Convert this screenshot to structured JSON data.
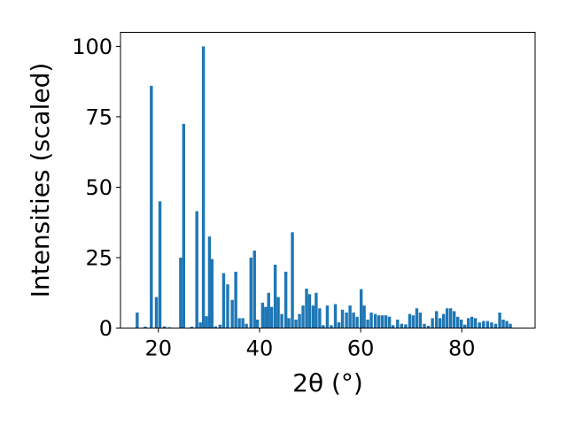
{
  "chart_data": {
    "type": "bar",
    "title": "",
    "xlabel": "2θ (°)",
    "ylabel": "Intensities (scaled)",
    "xlim": [
      12.5,
      94.5
    ],
    "ylim": [
      0,
      105
    ],
    "x_ticks": [
      20,
      40,
      60,
      80
    ],
    "y_ticks": [
      0,
      25,
      50,
      75,
      100
    ],
    "bar_width": 0.6,
    "grid": false,
    "color": "#1f77b4",
    "x": [
      15.8,
      17.4,
      18.6,
      19.6,
      20.3,
      21.2,
      22.2,
      24.4,
      25.0,
      26.6,
      27.6,
      28.3,
      28.9,
      29.5,
      30.1,
      30.6,
      31.3,
      32.2,
      32.9,
      33.7,
      34.6,
      35.3,
      36.0,
      36.7,
      37.4,
      38.3,
      39.0,
      39.6,
      40.6,
      41.2,
      41.8,
      42.4,
      43.1,
      43.7,
      44.4,
      45.2,
      45.8,
      46.5,
      47.2,
      47.9,
      48.6,
      49.3,
      49.9,
      50.6,
      51.2,
      51.9,
      52.6,
      53.4,
      54.2,
      55.0,
      55.7,
      56.4,
      57.2,
      57.9,
      58.6,
      59.3,
      60.1,
      60.7,
      61.4,
      62.1,
      62.9,
      63.6,
      64.3,
      65.0,
      65.7,
      66.4,
      67.3,
      68.1,
      68.9,
      69.7,
      70.4,
      71.1,
      71.8,
      72.6,
      73.4,
      74.2,
      75.0,
      75.7,
      76.4,
      77.1,
      77.8,
      78.5,
      79.2,
      79.9,
      80.6,
      81.3,
      82.0,
      82.7,
      83.5,
      84.3,
      85.1,
      85.9,
      86.7,
      87.5,
      88.2,
      88.9,
      89.6
    ],
    "values": [
      5.5,
      0.5,
      86,
      11,
      45,
      0.6,
      0.3,
      25,
      72.5,
      0.5,
      41.5,
      2,
      100,
      4.2,
      32.5,
      24.5,
      0.6,
      1.2,
      19.5,
      15.5,
      10,
      20,
      3.5,
      3.5,
      1.5,
      25,
      27.5,
      3,
      9,
      7.5,
      12.5,
      7.5,
      22.5,
      11,
      5,
      20,
      3.5,
      34,
      3,
      5,
      8,
      14,
      12,
      8,
      12.5,
      7,
      1,
      8,
      1,
      8.5,
      2,
      6.5,
      5.5,
      8,
      5.5,
      4,
      13.8,
      8,
      3,
      5.5,
      5,
      4.5,
      4.5,
      4.5,
      4,
      1,
      3,
      1.5,
      1.3,
      5,
      4.5,
      7,
      5.5,
      1.5,
      0.8,
      3.5,
      6,
      3.5,
      5,
      7,
      7,
      6,
      4,
      3,
      1.2,
      3.5,
      4,
      3.5,
      2,
      2.5,
      2.5,
      2,
      1.5,
      5.5,
      3,
      2.5,
      1.5
    ]
  }
}
